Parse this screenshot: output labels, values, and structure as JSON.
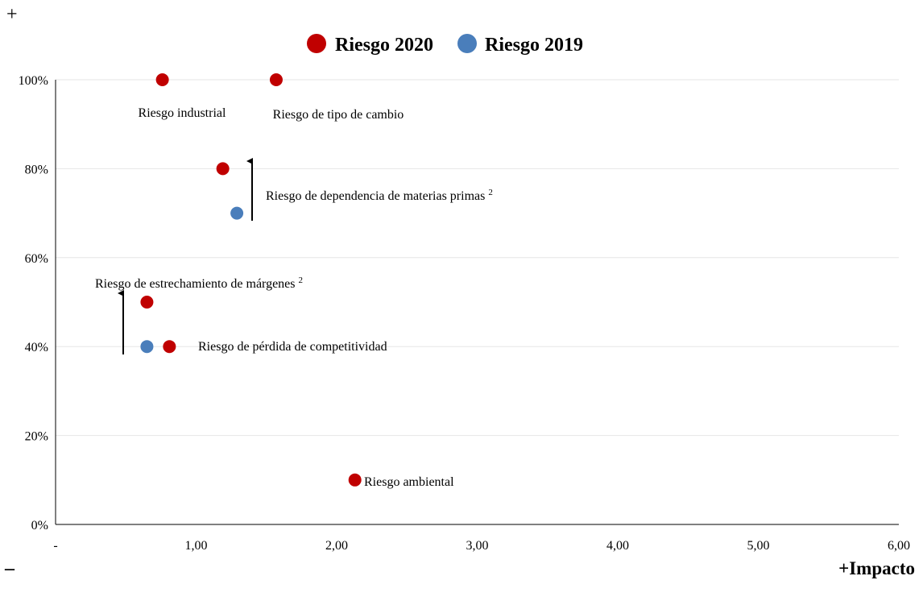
{
  "corner": {
    "plus": "+",
    "minus": "–",
    "impact": "+Impacto"
  },
  "chart_data": {
    "type": "scatter",
    "xlim": [
      0,
      6
    ],
    "ylim": [
      0,
      100
    ],
    "x_ticks": [
      "-",
      "1,00",
      "2,00",
      "3,00",
      "4,00",
      "5,00",
      "6,00"
    ],
    "y_ticks": [
      "0%",
      "20%",
      "40%",
      "60%",
      "80%",
      "100%"
    ],
    "grid": true,
    "legend_position": "top-center",
    "series": [
      {
        "name": "Riesgo 2020",
        "color": "#c00000",
        "points": [
          {
            "x": 0.76,
            "y": 100
          },
          {
            "x": 1.57,
            "y": 100
          },
          {
            "x": 1.19,
            "y": 80
          },
          {
            "x": 0.65,
            "y": 50
          },
          {
            "x": 0.81,
            "y": 40
          },
          {
            "x": 2.13,
            "y": 10
          }
        ]
      },
      {
        "name": "Riesgo 2019",
        "color": "#4a7ebb",
        "points": [
          {
            "x": 1.29,
            "y": 70
          },
          {
            "x": 0.65,
            "y": 40
          }
        ]
      }
    ],
    "annotations": [
      {
        "text": "Riesgo industrial",
        "sup": ""
      },
      {
        "text": "Riesgo de tipo de cambio",
        "sup": ""
      },
      {
        "text": "Riesgo de dependencia de materias primas",
        "sup": "2"
      },
      {
        "text": "Riesgo de estrechamiento de márgenes",
        "sup": "2"
      },
      {
        "text": "Riesgo de pérdida de competitividad",
        "sup": ""
      },
      {
        "text": "Riesgo ambiental",
        "sup": ""
      }
    ]
  }
}
